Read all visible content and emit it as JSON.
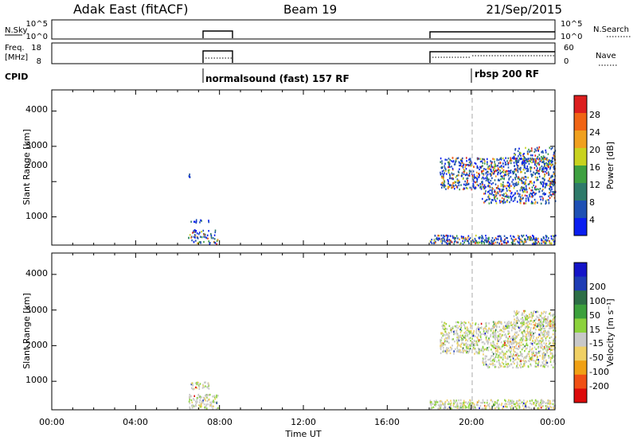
{
  "header": {
    "site": "Adak East (fitACF)",
    "beam": "Beam 19",
    "date": "21/Sep/2015"
  },
  "nsky_panel": {
    "left_label": "N.Sky",
    "left_ticks": [
      "10^5",
      "10^0"
    ],
    "right_label": "N.Search",
    "right_ticks": [
      "10^5",
      "10^0"
    ]
  },
  "freq_panel": {
    "left_label_1": "Freq.",
    "left_label_2": "[MHz]",
    "left_ticks": [
      "18",
      "8"
    ],
    "right_label": "Nave",
    "right_ticks": [
      "60",
      "0"
    ]
  },
  "cpid": {
    "label": "CPID",
    "programs": [
      {
        "name": "normalsound (fast) 157 RF",
        "start_hour": 6.5
      },
      {
        "name": "rbsp 200 RF",
        "start_hour": 20.0
      }
    ]
  },
  "colors": {
    "power": [
      "#0a1ef0",
      "#1e50b4",
      "#2e7a6a",
      "#3ea040",
      "#c8d21e",
      "#f0a01e",
      "#f06414",
      "#dc1e1e"
    ],
    "velocity": [
      "#dc0a0a",
      "#f05014",
      "#f0a014",
      "#f0d064",
      "#c8c8c8",
      "#8cd23c",
      "#3ca03c",
      "#2d6e46",
      "#1e3cb4",
      "#1414c8"
    ]
  },
  "chart_data": [
    {
      "type": "heatmap",
      "panel": "power",
      "ylabel": "Slant Range [km]",
      "yticks": [
        "1000",
        "2000",
        "3000",
        "4000"
      ],
      "ylim": [
        200,
        4600
      ],
      "xlim": [
        0,
        24
      ],
      "colorbar_label": "Power [dB]",
      "colorbar_ticks": [
        "4",
        "8",
        "12",
        "16",
        "20",
        "24",
        "28"
      ],
      "regions": [
        {
          "x": [
            6.5,
            7.9
          ],
          "y": [
            250,
            650
          ],
          "level": 0.3
        },
        {
          "x": [
            6.6,
            7.5
          ],
          "y": [
            800,
            1000
          ],
          "level": 0.15
        },
        {
          "x": [
            6.5,
            6.6
          ],
          "y": [
            2150,
            2250
          ],
          "level": 0.2
        },
        {
          "x": [
            18.0,
            24.0
          ],
          "y": [
            250,
            500
          ],
          "level": 0.5
        },
        {
          "x": [
            18.5,
            24.0
          ],
          "y": [
            1800,
            2700
          ],
          "level": 0.4
        },
        {
          "x": [
            20.5,
            24.0
          ],
          "y": [
            1400,
            1800
          ],
          "level": 0.35
        },
        {
          "x": [
            22.0,
            24.0
          ],
          "y": [
            2500,
            3000
          ],
          "level": 0.3
        }
      ]
    },
    {
      "type": "heatmap",
      "panel": "velocity",
      "ylabel": "Slant Range [km]",
      "yticks": [
        "1000",
        "2000",
        "3000",
        "4000"
      ],
      "ylim": [
        200,
        4600
      ],
      "xlim": [
        0,
        24
      ],
      "xticks": [
        "00:00",
        "04:00",
        "08:00",
        "12:00",
        "16:00",
        "20:00",
        "00:00"
      ],
      "xlabel": "Time UT",
      "colorbar_label": "Velocity [m s⁻¹]",
      "colorbar_ticks": [
        "-200",
        "-100",
        "-50",
        "-15",
        "15",
        "50",
        "100",
        "200"
      ],
      "regions": [
        {
          "x": [
            6.5,
            7.9
          ],
          "y": [
            250,
            650
          ],
          "level": 0.5
        },
        {
          "x": [
            6.6,
            7.5
          ],
          "y": [
            800,
            1000
          ],
          "level": 0.55
        },
        {
          "x": [
            18.0,
            24.0
          ],
          "y": [
            250,
            500
          ],
          "level": 0.55
        },
        {
          "x": [
            18.5,
            24.0
          ],
          "y": [
            1800,
            2700
          ],
          "level": 0.45
        },
        {
          "x": [
            20.5,
            24.0
          ],
          "y": [
            1400,
            1800
          ],
          "level": 0.45
        },
        {
          "x": [
            22.0,
            24.0
          ],
          "y": [
            2500,
            3000
          ],
          "level": 0.45
        }
      ]
    }
  ]
}
